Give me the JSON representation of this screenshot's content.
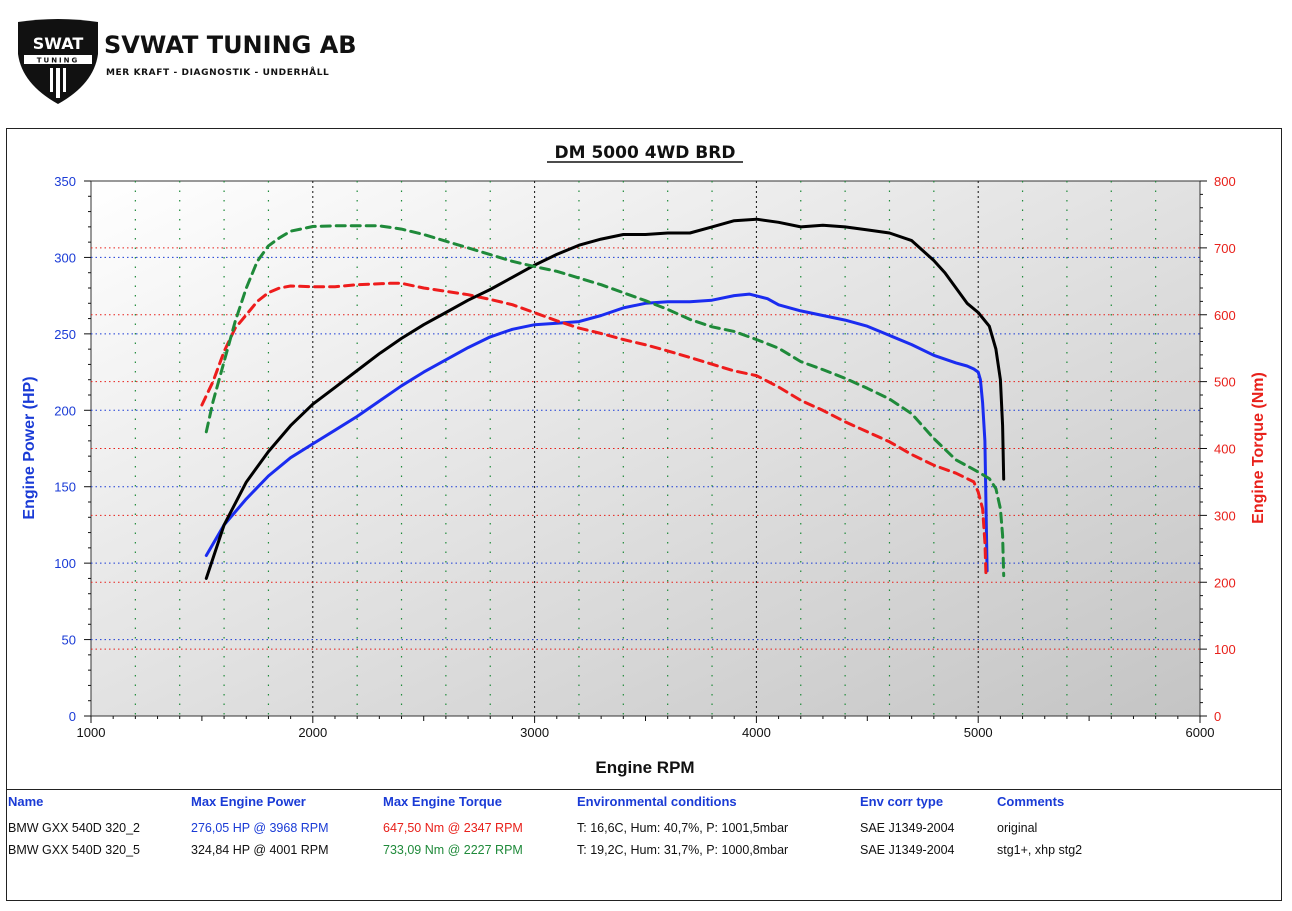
{
  "header": {
    "logo": {
      "mark_text": "SWAT",
      "sub_text": "TUNING"
    },
    "company_name": "SVWAT TUNING AB",
    "tagline": "MER KRAFT - DIAGNOSTIK - UNDERHÅLL"
  },
  "colors": {
    "power_axis": "#1a3bd6",
    "torque_axis": "#e8201a",
    "run1_power": "#1a2cf0",
    "run1_torque": "#ee1c1c",
    "run2_power": "#000000",
    "run2_torque": "#1f8a3a"
  },
  "chart_data": {
    "type": "line",
    "title": "DM 5000 4WD BRD",
    "xlabel": "Engine RPM",
    "ylabel_left": "Engine Power (HP)",
    "ylabel_right": "Engine Torque (Nm)",
    "xlim": [
      1000,
      6000
    ],
    "ylim_left": [
      0,
      350
    ],
    "ylim_right": [
      0,
      800
    ],
    "xticks": [
      1000,
      2000,
      3000,
      4000,
      5000,
      6000
    ],
    "yticks_left": [
      0,
      50,
      100,
      150,
      200,
      250,
      300,
      350
    ],
    "yticks_right": [
      0,
      100,
      200,
      300,
      400,
      500,
      600,
      700,
      800
    ],
    "grid": true,
    "series": [
      {
        "name": "BMW GXX 540D 320_2",
        "quantity": "power",
        "axis": "left",
        "style": "solid",
        "color": "#1a2cf0",
        "x": [
          1520,
          1600,
          1700,
          1800,
          1900,
          2000,
          2100,
          2200,
          2300,
          2400,
          2500,
          2600,
          2700,
          2800,
          2900,
          3000,
          3100,
          3200,
          3300,
          3400,
          3500,
          3600,
          3700,
          3800,
          3900,
          3968,
          4050,
          4100,
          4200,
          4300,
          4400,
          4500,
          4600,
          4700,
          4800,
          4900,
          4950,
          4980,
          5000,
          5010,
          5020,
          5030,
          5040
        ],
        "y": [
          105,
          125,
          142,
          157,
          169,
          178,
          187,
          196,
          206,
          216,
          225,
          233,
          241,
          248,
          253,
          256,
          257,
          258,
          262,
          267,
          270,
          271,
          271,
          272,
          275,
          276,
          273,
          269,
          265,
          262,
          259,
          255,
          249,
          243,
          236,
          231,
          229,
          227,
          225,
          220,
          205,
          180,
          95
        ]
      },
      {
        "name": "BMW GXX 540D 320_2",
        "quantity": "torque",
        "axis": "right",
        "style": "dashed",
        "color": "#ee1c1c",
        "x": [
          1500,
          1550,
          1600,
          1650,
          1700,
          1750,
          1800,
          1850,
          1900,
          2000,
          2100,
          2200,
          2347,
          2400,
          2500,
          2600,
          2700,
          2800,
          2900,
          3000,
          3100,
          3200,
          3300,
          3400,
          3500,
          3600,
          3700,
          3800,
          3900,
          4000,
          4100,
          4200,
          4300,
          4400,
          4500,
          4600,
          4700,
          4800,
          4900,
          4950,
          4980,
          5000,
          5020,
          5030,
          5035
        ],
        "y": [
          465,
          500,
          545,
          580,
          600,
          620,
          633,
          640,
          643,
          642,
          642,
          645,
          647,
          647,
          640,
          635,
          630,
          623,
          615,
          603,
          591,
          580,
          572,
          563,
          555,
          546,
          536,
          526,
          516,
          509,
          492,
          472,
          457,
          440,
          425,
          410,
          391,
          375,
          363,
          355,
          350,
          335,
          310,
          260,
          210
        ]
      },
      {
        "name": "BMW GXX 540D 320_5",
        "quantity": "power",
        "axis": "left",
        "style": "solid",
        "color": "#000000",
        "x": [
          1520,
          1600,
          1700,
          1800,
          1900,
          2000,
          2100,
          2200,
          2300,
          2400,
          2500,
          2600,
          2700,
          2800,
          2900,
          3000,
          3100,
          3200,
          3300,
          3400,
          3500,
          3600,
          3700,
          3800,
          3900,
          4001,
          4100,
          4200,
          4300,
          4400,
          4500,
          4600,
          4700,
          4800,
          4850,
          4900,
          4950,
          5000,
          5050,
          5080,
          5100,
          5110,
          5115
        ],
        "y": [
          90,
          125,
          153,
          173,
          190,
          204,
          215,
          226,
          237,
          247,
          256,
          264,
          272,
          279,
          287,
          295,
          302,
          308,
          312,
          315,
          315,
          316,
          316,
          320,
          324,
          325,
          323,
          320,
          321,
          320,
          318,
          316,
          311,
          298,
          290,
          280,
          270,
          264,
          255,
          240,
          220,
          190,
          155
        ]
      },
      {
        "name": "BMW GXX 540D 320_5",
        "quantity": "torque",
        "axis": "right",
        "style": "dashed",
        "color": "#1f8a3a",
        "x": [
          1520,
          1550,
          1600,
          1650,
          1700,
          1750,
          1800,
          1850,
          1900,
          2000,
          2100,
          2227,
          2300,
          2400,
          2500,
          2600,
          2700,
          2800,
          2900,
          3000,
          3100,
          3200,
          3300,
          3400,
          3500,
          3600,
          3700,
          3800,
          3900,
          4000,
          4100,
          4200,
          4300,
          4400,
          4500,
          4600,
          4700,
          4800,
          4900,
          5000,
          5050,
          5080,
          5100,
          5110,
          5115
        ],
        "y": [
          425,
          470,
          530,
          590,
          640,
          680,
          703,
          715,
          725,
          732,
          733,
          733,
          733,
          728,
          720,
          710,
          700,
          690,
          680,
          672,
          665,
          655,
          645,
          633,
          621,
          608,
          593,
          582,
          575,
          563,
          550,
          530,
          518,
          505,
          490,
          474,
          452,
          415,
          383,
          365,
          355,
          340,
          310,
          270,
          210
        ]
      }
    ]
  },
  "table": {
    "headers": {
      "name": "Name",
      "max_power": "Max Engine Power",
      "max_torque": "Max Engine Torque",
      "env": "Environmental conditions",
      "env_corr": "Env corr type",
      "comments": "Comments"
    },
    "rows": [
      {
        "name": "BMW GXX 540D 320_2",
        "max_power": "276,05 HP @ 3968 RPM",
        "max_torque": "647,50 Nm @ 2347 RPM",
        "env": "T: 16,6C, Hum: 40,7%, P: 1001,5mbar",
        "env_corr": "SAE J1349-2004",
        "comments": "original",
        "power_color": "#1a3bd6",
        "torque_color": "#e8201a"
      },
      {
        "name": "BMW GXX 540D 320_5",
        "max_power": "324,84 HP @ 4001 RPM",
        "max_torque": "733,09 Nm @ 2227 RPM",
        "env": "T: 19,2C, Hum: 31,7%, P: 1000,8mbar",
        "env_corr": "SAE J1349-2004",
        "comments": "stg1+, xhp stg2",
        "power_color": "#111111",
        "torque_color": "#1f8a3a"
      }
    ]
  }
}
